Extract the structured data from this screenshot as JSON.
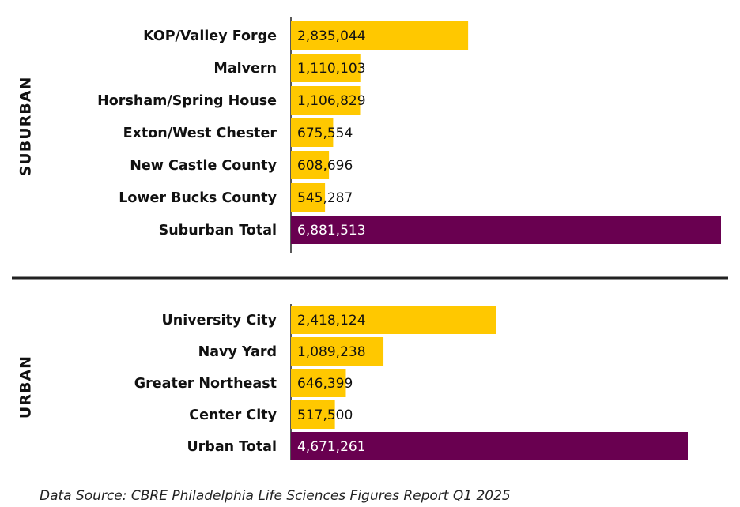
{
  "chart_data": [
    {
      "type": "bar",
      "orientation": "horizontal",
      "group": "SUBURBAN",
      "categories": [
        "KOP/Valley Forge",
        "Malvern",
        "Horsham/Spring House",
        "Exton/West Chester",
        "New Castle County",
        "Lower Bucks County",
        "Suburban Total"
      ],
      "values": [
        2835044,
        1110103,
        1106829,
        675554,
        608696,
        545287,
        6881513
      ],
      "value_labels": [
        "2,835,044",
        "1,110,103",
        "1,106,829",
        "675,554",
        "608,696",
        "545,287",
        "6,881,513"
      ],
      "colors": [
        "#FFC800",
        "#FFC800",
        "#FFC800",
        "#FFC800",
        "#FFC800",
        "#FFC800",
        "#690050"
      ]
    },
    {
      "type": "bar",
      "orientation": "horizontal",
      "group": "URBAN",
      "categories": [
        "University City",
        "Navy Yard",
        "Greater Northeast",
        "Center City",
        "Urban Total"
      ],
      "values": [
        2418124,
        1089238,
        646399,
        517500,
        4671261
      ],
      "value_labels": [
        "2,418,124",
        "1,089,238",
        "646,399",
        "517,500",
        "4,671,261"
      ],
      "colors": [
        "#FFC800",
        "#FFC800",
        "#FFC800",
        "#FFC800",
        "#690050"
      ]
    }
  ],
  "source": "Data Source: CBRE Philadelphia Life Sciences Figures Report Q1 2025"
}
